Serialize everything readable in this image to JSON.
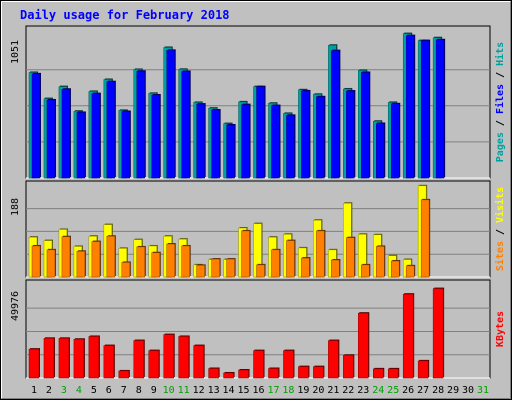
{
  "chart_data": {
    "type": "bar",
    "title": "Daily usage for February 2018",
    "x_labels": [
      "1",
      "2",
      "3",
      "4",
      "5",
      "6",
      "7",
      "8",
      "9",
      "10",
      "11",
      "12",
      "13",
      "14",
      "15",
      "16",
      "17",
      "18",
      "19",
      "20",
      "21",
      "22",
      "23",
      "24",
      "25",
      "26",
      "27",
      "28",
      "29",
      "30",
      "31"
    ],
    "weekend_days": [
      3,
      4,
      10,
      11,
      17,
      18,
      24,
      25,
      31
    ],
    "panels": {
      "pages_files_hits": {
        "ymax": 1051,
        "ylabel_parts": [
          "Pages",
          " / ",
          "Files",
          " / ",
          "Hits"
        ],
        "series": [
          {
            "name": "Hits",
            "values": [
              768,
              578,
              665,
              486,
              630,
              717,
              492,
              790,
              616,
              950,
              791,
              550,
              508,
              396,
              554,
              665,
              544,
              470,
              642,
              609,
              966,
              648,
              783,
              413,
              550,
              1051,
              1000,
              1021,
              0,
              0,
              0
            ]
          },
          {
            "name": "Files",
            "values": [
              758,
              568,
              646,
              477,
              614,
              701,
              484,
              777,
              604,
              929,
              775,
              538,
              495,
              386,
              534,
              665,
              527,
              456,
              634,
              591,
              927,
              633,
              768,
              397,
              540,
              1036,
              1000,
              1006,
              0,
              0,
              0
            ]
          },
          {
            "name": "Pages",
            "values": [
              0,
              0,
              0,
              0,
              0,
              0,
              0,
              0,
              0,
              0,
              0,
              0,
              0,
              0,
              0,
              0,
              0,
              0,
              0,
              0,
              0,
              0,
              0,
              0,
              0,
              0,
              0,
              0,
              0,
              0,
              0
            ]
          }
        ]
      },
      "visits_sites": {
        "ymax": 188,
        "ylabel_parts": [
          "Sites",
          " / ",
          "Visits"
        ],
        "series": [
          {
            "name": "Visits",
            "values": [
              82,
              75,
              98,
              63,
              84,
              108,
              59,
              77,
              64,
              84,
              78,
              25,
              36,
              36,
              101,
              110,
              82,
              88,
              60,
              117,
              56,
              152,
              88,
              87,
              44,
              36,
              188,
              0,
              0,
              0,
              0
            ]
          },
          {
            "name": "Sites",
            "values": [
              64,
              56,
              83,
              53,
              73,
              84,
              30,
              62,
              50,
              68,
              64,
              24,
              37,
              37,
              95,
              25,
              56,
              75,
              39,
              95,
              35,
              81,
              25,
              63,
              33,
              23,
              159,
              0,
              0,
              0,
              0
            ]
          }
        ]
      },
      "kbytes": {
        "ymax": 49976,
        "ylabel_parts": [
          "KBytes"
        ],
        "series": [
          {
            "name": "KBytes",
            "values": [
              15500,
              21300,
              21300,
              20800,
              22300,
              17400,
              3800,
              20100,
              14700,
              23300,
              22300,
              17400,
              5100,
              2700,
              4300,
              14700,
              5100,
              14700,
              6100,
              6100,
              20100,
              12200,
              34800,
              4900,
              4900,
              45000,
              9200,
              48000,
              0,
              0,
              0
            ]
          }
        ]
      }
    }
  },
  "colors": {
    "pages": "#00a0a0",
    "files": "#0000ff",
    "hits": "#00a0a0",
    "visits": "#ffff00",
    "sites": "#ff8000",
    "kbytes": "#ff0000",
    "weekend_label": "#00a000",
    "title": "#0000ff"
  }
}
